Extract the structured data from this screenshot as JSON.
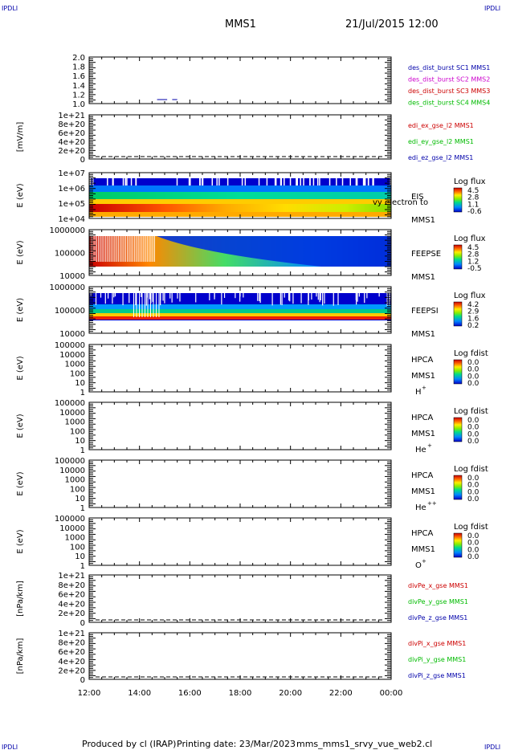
{
  "header": {
    "corner_tl": "IPDLI",
    "corner_tr": "IPDLI",
    "corner_bl": "IPDLI",
    "corner_br": "IPDLI",
    "mission": "MMS1",
    "datetime": "21/Jul/2015 12:00"
  },
  "footer": {
    "produced": "Produced by cl (IRAP)",
    "printing": "Printing date: 23/Mar/2023",
    "file": "mms_mms1_srvy_vue_web2.cl"
  },
  "colors": {
    "sc1": "#0000aa",
    "sc2": "#cc00cc",
    "sc3": "#cc0000",
    "sc4": "#00bb00",
    "x": "#cc0000",
    "y": "#00bb00",
    "z": "#0000aa"
  },
  "chart_data": [
    {
      "id": "des_dist",
      "type": "line",
      "yticks": [
        "2.0",
        "1.8",
        "1.6",
        "1.4",
        "1.2",
        "1.0"
      ],
      "ylim": [
        1.0,
        2.0
      ],
      "ylabel": "",
      "series": [
        {
          "name": "des_dist_burst SC1 MMS1",
          "color": "#0000aa",
          "segments": [
            [
              [
                14.7,
                1.0
              ],
              [
                15.1,
                1.0
              ]
            ],
            [
              [
                15.3,
                1.0
              ],
              [
                15.5,
                1.0
              ]
            ]
          ]
        },
        {
          "name": "des_dist_burst SC2 MMS2",
          "color": "#cc00cc",
          "segments": []
        },
        {
          "name": "des_dist_burst SC3 MMS3",
          "color": "#cc0000",
          "segments": []
        },
        {
          "name": "des_dist_burst SC4 MMS4",
          "color": "#00bb00",
          "segments": []
        }
      ]
    },
    {
      "id": "edi_e",
      "type": "line",
      "ylabel": "[mV/m]",
      "yticks": [
        "1e+21",
        "8e+20",
        "6e+20",
        "4e+20",
        "2e+20",
        "0"
      ],
      "ylim": [
        0,
        1e+21
      ],
      "zero_line": true,
      "series": [
        {
          "name": "edi_ex_gse_l2 MMS1",
          "color": "#cc0000",
          "values": []
        },
        {
          "name": "edi_ey_gse_l2 MMS1",
          "color": "#00bb00",
          "values": []
        },
        {
          "name": "edi_ez_gse_l2 MMS1",
          "color": "#0000aa",
          "values": []
        }
      ]
    },
    {
      "id": "eis",
      "type": "heatmap",
      "ylabel": "E (eV)",
      "yticks": [
        "1e+07",
        "1e+06",
        "1e+05",
        "1e+04"
      ],
      "ylim": [
        10000.0,
        10000000.0
      ],
      "right_labels": [
        "EIS",
        "MMS1"
      ],
      "overlay_text": "vy electron to",
      "colorbar": {
        "title": "Log flux",
        "ticks": [
          "4.5",
          "2.8",
          "1.1",
          "-0.6"
        ]
      }
    },
    {
      "id": "feeps_e",
      "type": "heatmap",
      "ylabel": "E (eV)",
      "yticks": [
        "1000000",
        "100000",
        "10000"
      ],
      "ylim": [
        10000.0,
        1000000.0
      ],
      "right_labels": [
        "FEEPSE",
        "MMS1"
      ],
      "colorbar": {
        "title": "Log flux",
        "ticks": [
          "4.5",
          "2.8",
          "1.2",
          "-0.5"
        ]
      }
    },
    {
      "id": "feeps_i",
      "type": "heatmap",
      "ylabel": "E (eV)",
      "yticks": [
        "1000000",
        "100000",
        "10000"
      ],
      "ylim": [
        10000.0,
        1000000.0
      ],
      "right_labels": [
        "FEEPSI",
        "MMS1"
      ],
      "colorbar": {
        "title": "Log flux",
        "ticks": [
          "4.2",
          "2.9",
          "1.6",
          "0.2"
        ]
      }
    },
    {
      "id": "hpca_h",
      "type": "heatmap",
      "ylabel": "E (eV)",
      "yticks": [
        "100000",
        "10000",
        "1000",
        "100",
        "10",
        "1"
      ],
      "ylim": [
        1,
        100000.0
      ],
      "right_labels": [
        "HPCA",
        "MMS1"
      ],
      "species": "H",
      "species_sup": "+",
      "colorbar": {
        "title": "Log fdist",
        "ticks": [
          "0.0",
          "0.0",
          "0.0",
          "0.0"
        ]
      }
    },
    {
      "id": "hpca_he",
      "type": "heatmap",
      "ylabel": "E (eV)",
      "yticks": [
        "100000",
        "10000",
        "1000",
        "100",
        "10",
        "1"
      ],
      "ylim": [
        1,
        100000.0
      ],
      "right_labels": [
        "HPCA",
        "MMS1"
      ],
      "species": "He",
      "species_sup": "+",
      "colorbar": {
        "title": "Log fdist",
        "ticks": [
          "0.0",
          "0.0",
          "0.0",
          "0.0"
        ]
      }
    },
    {
      "id": "hpca_he2",
      "type": "heatmap",
      "ylabel": "E (eV)",
      "yticks": [
        "100000",
        "10000",
        "1000",
        "100",
        "10",
        "1"
      ],
      "ylim": [
        1,
        100000.0
      ],
      "right_labels": [
        "HPCA",
        "MMS1"
      ],
      "species": "He",
      "species_sup": "++",
      "colorbar": {
        "title": "Log fdist",
        "ticks": [
          "0.0",
          "0.0",
          "0.0",
          "0.0"
        ]
      }
    },
    {
      "id": "hpca_o",
      "type": "heatmap",
      "ylabel": "E (eV)",
      "yticks": [
        "100000",
        "10000",
        "1000",
        "100",
        "10",
        "1"
      ],
      "ylim": [
        1,
        100000.0
      ],
      "right_labels": [
        "HPCA",
        "MMS1"
      ],
      "species": "O",
      "species_sup": "+",
      "colorbar": {
        "title": "Log fdist",
        "ticks": [
          "0.0",
          "0.0",
          "0.0",
          "0.0"
        ]
      }
    },
    {
      "id": "divpe",
      "type": "line",
      "ylabel": "[nPa/km]",
      "yticks": [
        "1e+21",
        "8e+20",
        "6e+20",
        "4e+20",
        "2e+20",
        "0"
      ],
      "ylim": [
        0,
        1e+21
      ],
      "zero_line": true,
      "series": [
        {
          "name": "divPe_x_gse MMS1",
          "color": "#cc0000",
          "values": []
        },
        {
          "name": "divPe_y_gse MMS1",
          "color": "#00bb00",
          "values": []
        },
        {
          "name": "divPe_z_gse MMS1",
          "color": "#0000aa",
          "values": []
        }
      ]
    },
    {
      "id": "divpi",
      "type": "line",
      "ylabel": "[nPa/km]",
      "yticks": [
        "1e+21",
        "8e+20",
        "6e+20",
        "4e+20",
        "2e+20",
        "0"
      ],
      "ylim": [
        0,
        1e+21
      ],
      "zero_line": true,
      "series": [
        {
          "name": "divPi_x_gse MMS1",
          "color": "#cc0000",
          "values": []
        },
        {
          "name": "divPi_y_gse MMS1",
          "color": "#00bb00",
          "values": []
        },
        {
          "name": "divPi_z_gse MMS1",
          "color": "#0000aa",
          "values": []
        }
      ]
    }
  ],
  "xaxis": {
    "range_hours": [
      12,
      24
    ],
    "ticks": [
      {
        "h": 12,
        "label": "12:00"
      },
      {
        "h": 14,
        "label": "14:00"
      },
      {
        "h": 16,
        "label": "16:00"
      },
      {
        "h": 18,
        "label": "18:00"
      },
      {
        "h": 20,
        "label": "20:00"
      },
      {
        "h": 22,
        "label": "22:00"
      },
      {
        "h": 24,
        "label": "00:00"
      }
    ]
  }
}
